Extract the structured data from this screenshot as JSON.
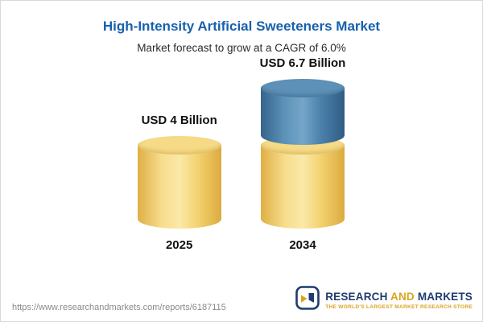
{
  "header": {
    "title": "High-Intensity Artificial Sweeteners Market",
    "subtitle": "Market forecast to grow at a CAGR of 6.0%"
  },
  "chart_data": {
    "type": "bar",
    "title": "High-Intensity Artificial Sweeteners Market",
    "subtitle": "Market forecast to grow at a CAGR of 6.0%",
    "unit": "USD Billion",
    "categories": [
      "2025",
      "2034"
    ],
    "values": [
      4,
      6.7
    ],
    "value_labels": [
      "USD 4 Billion",
      "USD 6.7 Billion"
    ],
    "cagr_percent": 6.0,
    "bars": [
      {
        "category": "2025",
        "label": "USD 4 Billion",
        "segments": [
          {
            "value": 4,
            "color": "yellow"
          }
        ]
      },
      {
        "category": "2034",
        "label": "USD 6.7 Billion",
        "segments": [
          {
            "value": 4,
            "color": "yellow"
          },
          {
            "value": 2.7,
            "color": "blue"
          }
        ]
      }
    ],
    "colors": {
      "yellow": "#f3d26f",
      "blue": "#4b81ab",
      "title_blue": "#1760ae"
    },
    "legend": "none",
    "grid": false
  },
  "footer": {
    "url": "https://www.researchandmarkets.com/reports/6187115",
    "logo": {
      "research": "RESEARCH",
      "and": "AND",
      "markets": "MARKETS",
      "tagline": "THE WORLD'S LARGEST MARKET RESEARCH STORE"
    }
  }
}
